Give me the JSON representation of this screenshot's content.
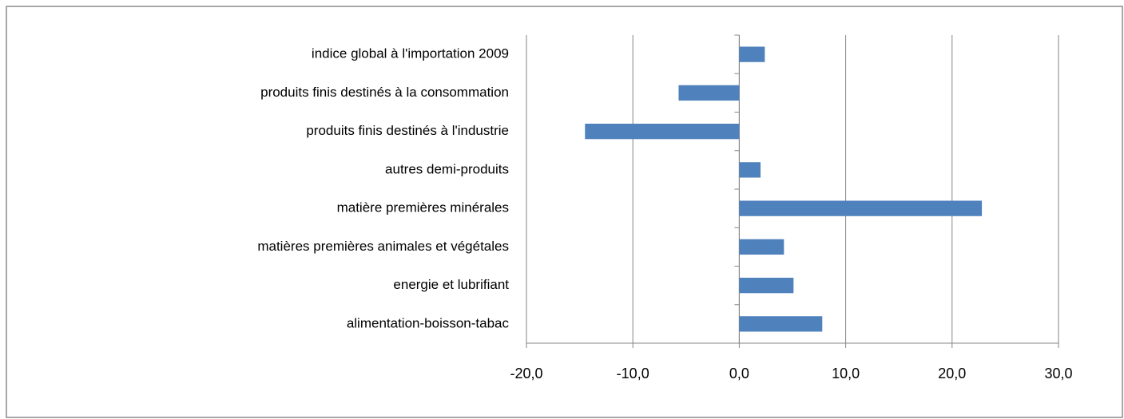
{
  "chart_data": {
    "type": "hbar",
    "categories": [
      "indice global à l'importation 2009",
      "produits finis destinés à la consommation",
      "produits finis destinés à l'industrie",
      "autres demi-produits",
      "matière premières minérales",
      "matières premières animales et végétales",
      "energie et lubrifiant",
      "alimentation-boisson-tabac"
    ],
    "values": [
      2.4,
      -5.7,
      -14.5,
      2.0,
      22.8,
      4.2,
      5.1,
      7.8
    ],
    "color": "#4f81bd",
    "xlim": [
      -20,
      30
    ],
    "xticks": [
      {
        "value": -20,
        "label": "-20,0"
      },
      {
        "value": -10,
        "label": "-10,0"
      },
      {
        "value": 0,
        "label": "0,0"
      },
      {
        "value": 10,
        "label": "10,0"
      },
      {
        "value": 20,
        "label": "20,0"
      },
      {
        "value": 30,
        "label": "30,0"
      }
    ],
    "grid": true
  }
}
